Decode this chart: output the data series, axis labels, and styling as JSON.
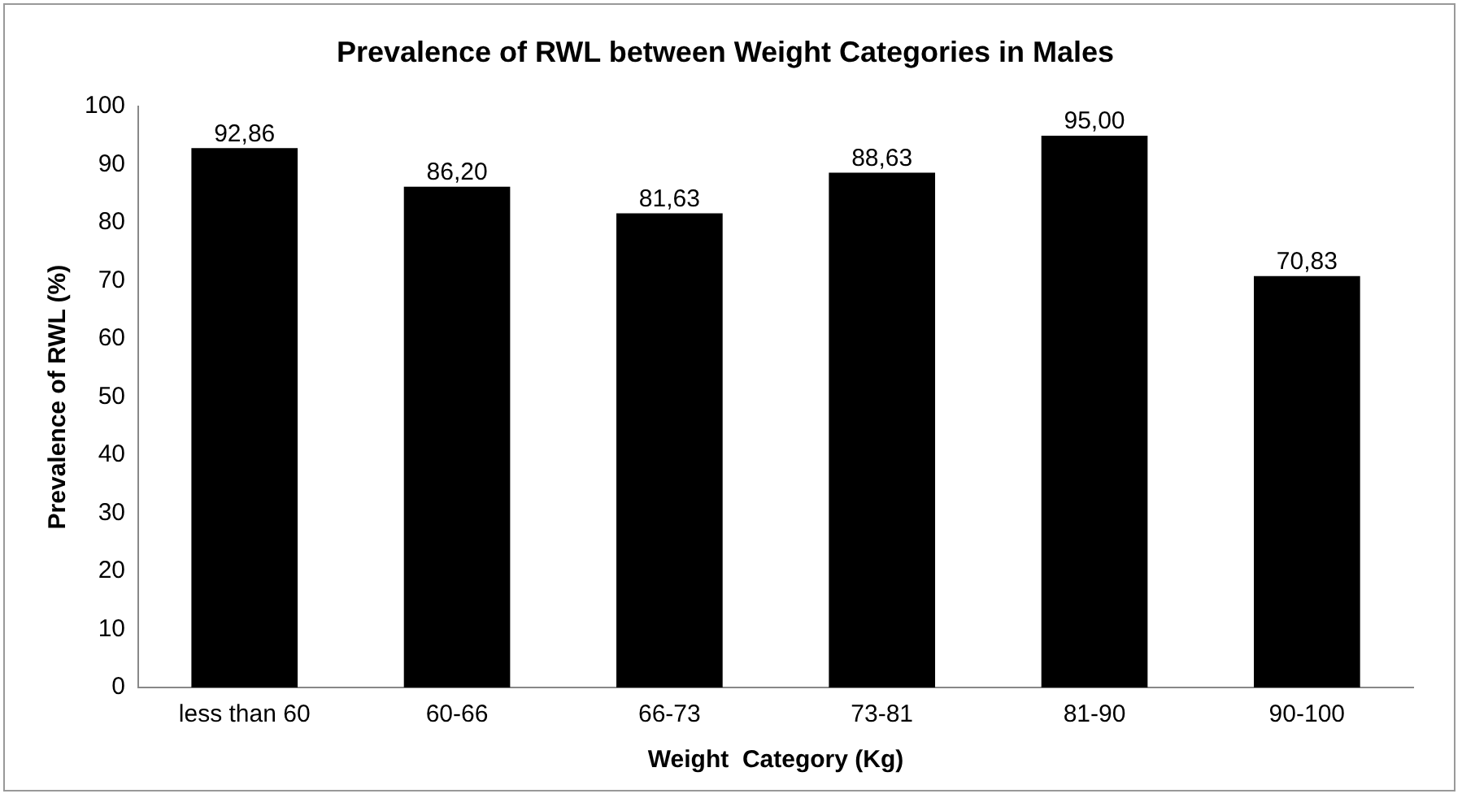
{
  "chart_data": {
    "type": "bar",
    "title": "Prevalence of RWL between Weight Categories in Males",
    "xlabel": "Weight  Category (Kg)",
    "ylabel": "Prevalence of RWL (%)",
    "categories": [
      "less than 60",
      "60-66",
      "66-73",
      "73-81",
      "81-90",
      "90-100"
    ],
    "values": [
      92.86,
      86.2,
      81.63,
      88.63,
      95.0,
      70.83
    ],
    "value_labels": [
      "92,86",
      "86,20",
      "81,63",
      "88,63",
      "95,00",
      "70,83"
    ],
    "color": "#000000",
    "ylim": [
      0,
      100
    ],
    "yticks": [
      0,
      10,
      20,
      30,
      40,
      50,
      60,
      70,
      80,
      90,
      100
    ],
    "grid": false,
    "legend": false
  }
}
